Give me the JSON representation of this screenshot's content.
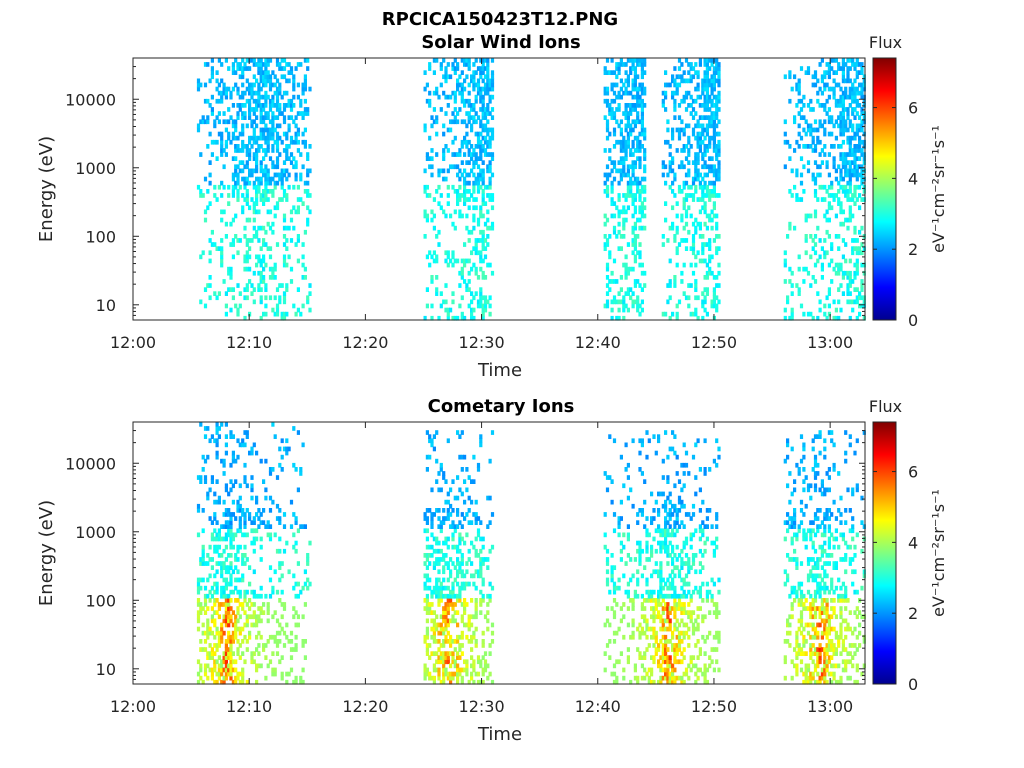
{
  "figure_title": "RPCICA150423T12.PNG",
  "colormap": [
    "#00008f",
    "#0000ff",
    "#0080ff",
    "#00ffff",
    "#80ff80",
    "#ffff00",
    "#ff8000",
    "#ff0000",
    "#800000"
  ],
  "chart_data": [
    {
      "type": "heatmap",
      "title": "Solar Wind Ions",
      "xlabel": "Time",
      "ylabel": "Energy (eV)",
      "x_scale": "time",
      "y_scale": "log",
      "xlim": [
        "12:00",
        "13:03"
      ],
      "ylim": [
        6,
        40000
      ],
      "x_ticks": [
        "12:00",
        "12:10",
        "12:20",
        "12:30",
        "12:40",
        "12:50",
        "13:00"
      ],
      "y_ticks": [
        10,
        100,
        1000,
        10000
      ],
      "y_tick_labels": [
        "10",
        "100",
        "1000",
        "10000"
      ],
      "colorbar": {
        "title": "Flux",
        "label": "eV⁻¹cm⁻²sr⁻¹s⁻¹",
        "range": [
          0,
          7.4
        ],
        "ticks": [
          "0",
          "2",
          "4",
          "6"
        ]
      },
      "bursts": [
        {
          "start": "12:05.5",
          "end": "12:15.3",
          "peak": "12:11",
          "emin": 6,
          "emax": 35000,
          "flux_range": [
            2.3,
            3.5
          ]
        },
        {
          "start": "12:25.0",
          "end": "12:31.0",
          "peak": "12:30",
          "emin": 6,
          "emax": 35000,
          "flux_range": [
            2.3,
            3.5
          ]
        },
        {
          "start": "12:40.5",
          "end": "12:44.0",
          "peak": "12:43",
          "emin": 6,
          "emax": 35000,
          "flux_range": [
            2.3,
            3.5
          ]
        },
        {
          "start": "12:45.5",
          "end": "12:50.5",
          "peak": "12:49.5",
          "emin": 6,
          "emax": 35000,
          "flux_range": [
            2.3,
            3.5
          ]
        },
        {
          "start": "12:56.0",
          "end": "13:03.0",
          "peak": "13:02",
          "emin": 6,
          "emax": 35000,
          "flux_range": [
            2.3,
            3.5
          ]
        }
      ]
    },
    {
      "type": "heatmap",
      "title": "Cometary Ions",
      "xlabel": "Time",
      "ylabel": "Energy (eV)",
      "x_scale": "time",
      "y_scale": "log",
      "xlim": [
        "12:00",
        "13:03"
      ],
      "ylim": [
        6,
        40000
      ],
      "x_ticks": [
        "12:00",
        "12:10",
        "12:20",
        "12:30",
        "12:40",
        "12:50",
        "13:00"
      ],
      "y_ticks": [
        10,
        100,
        1000,
        10000
      ],
      "y_tick_labels": [
        "10",
        "100",
        "1000",
        "10000"
      ],
      "colorbar": {
        "title": "Flux",
        "label": "eV⁻¹cm⁻²sr⁻¹s⁻¹",
        "range": [
          0,
          7.4
        ],
        "ticks": [
          "0",
          "2",
          "4",
          "6"
        ]
      },
      "bursts": [
        {
          "start": "12:05.5",
          "end": "12:15.3",
          "peak": "12:08",
          "emin": 6,
          "emax": 35000,
          "flux_range": [
            4.0,
            6.5
          ]
        },
        {
          "start": "12:25.0",
          "end": "12:31.0",
          "peak": "12:27",
          "emin": 6,
          "emax": 30000,
          "flux_range": [
            4.0,
            6.5
          ]
        },
        {
          "start": "12:40.5",
          "end": "12:50.5",
          "peak": "12:46",
          "emin": 6,
          "emax": 30000,
          "flux_range": [
            4.0,
            6.5
          ]
        },
        {
          "start": "12:56.0",
          "end": "13:03.0",
          "peak": "12:59",
          "emin": 6,
          "emax": 30000,
          "flux_range": [
            4.0,
            6.5
          ]
        }
      ]
    }
  ]
}
